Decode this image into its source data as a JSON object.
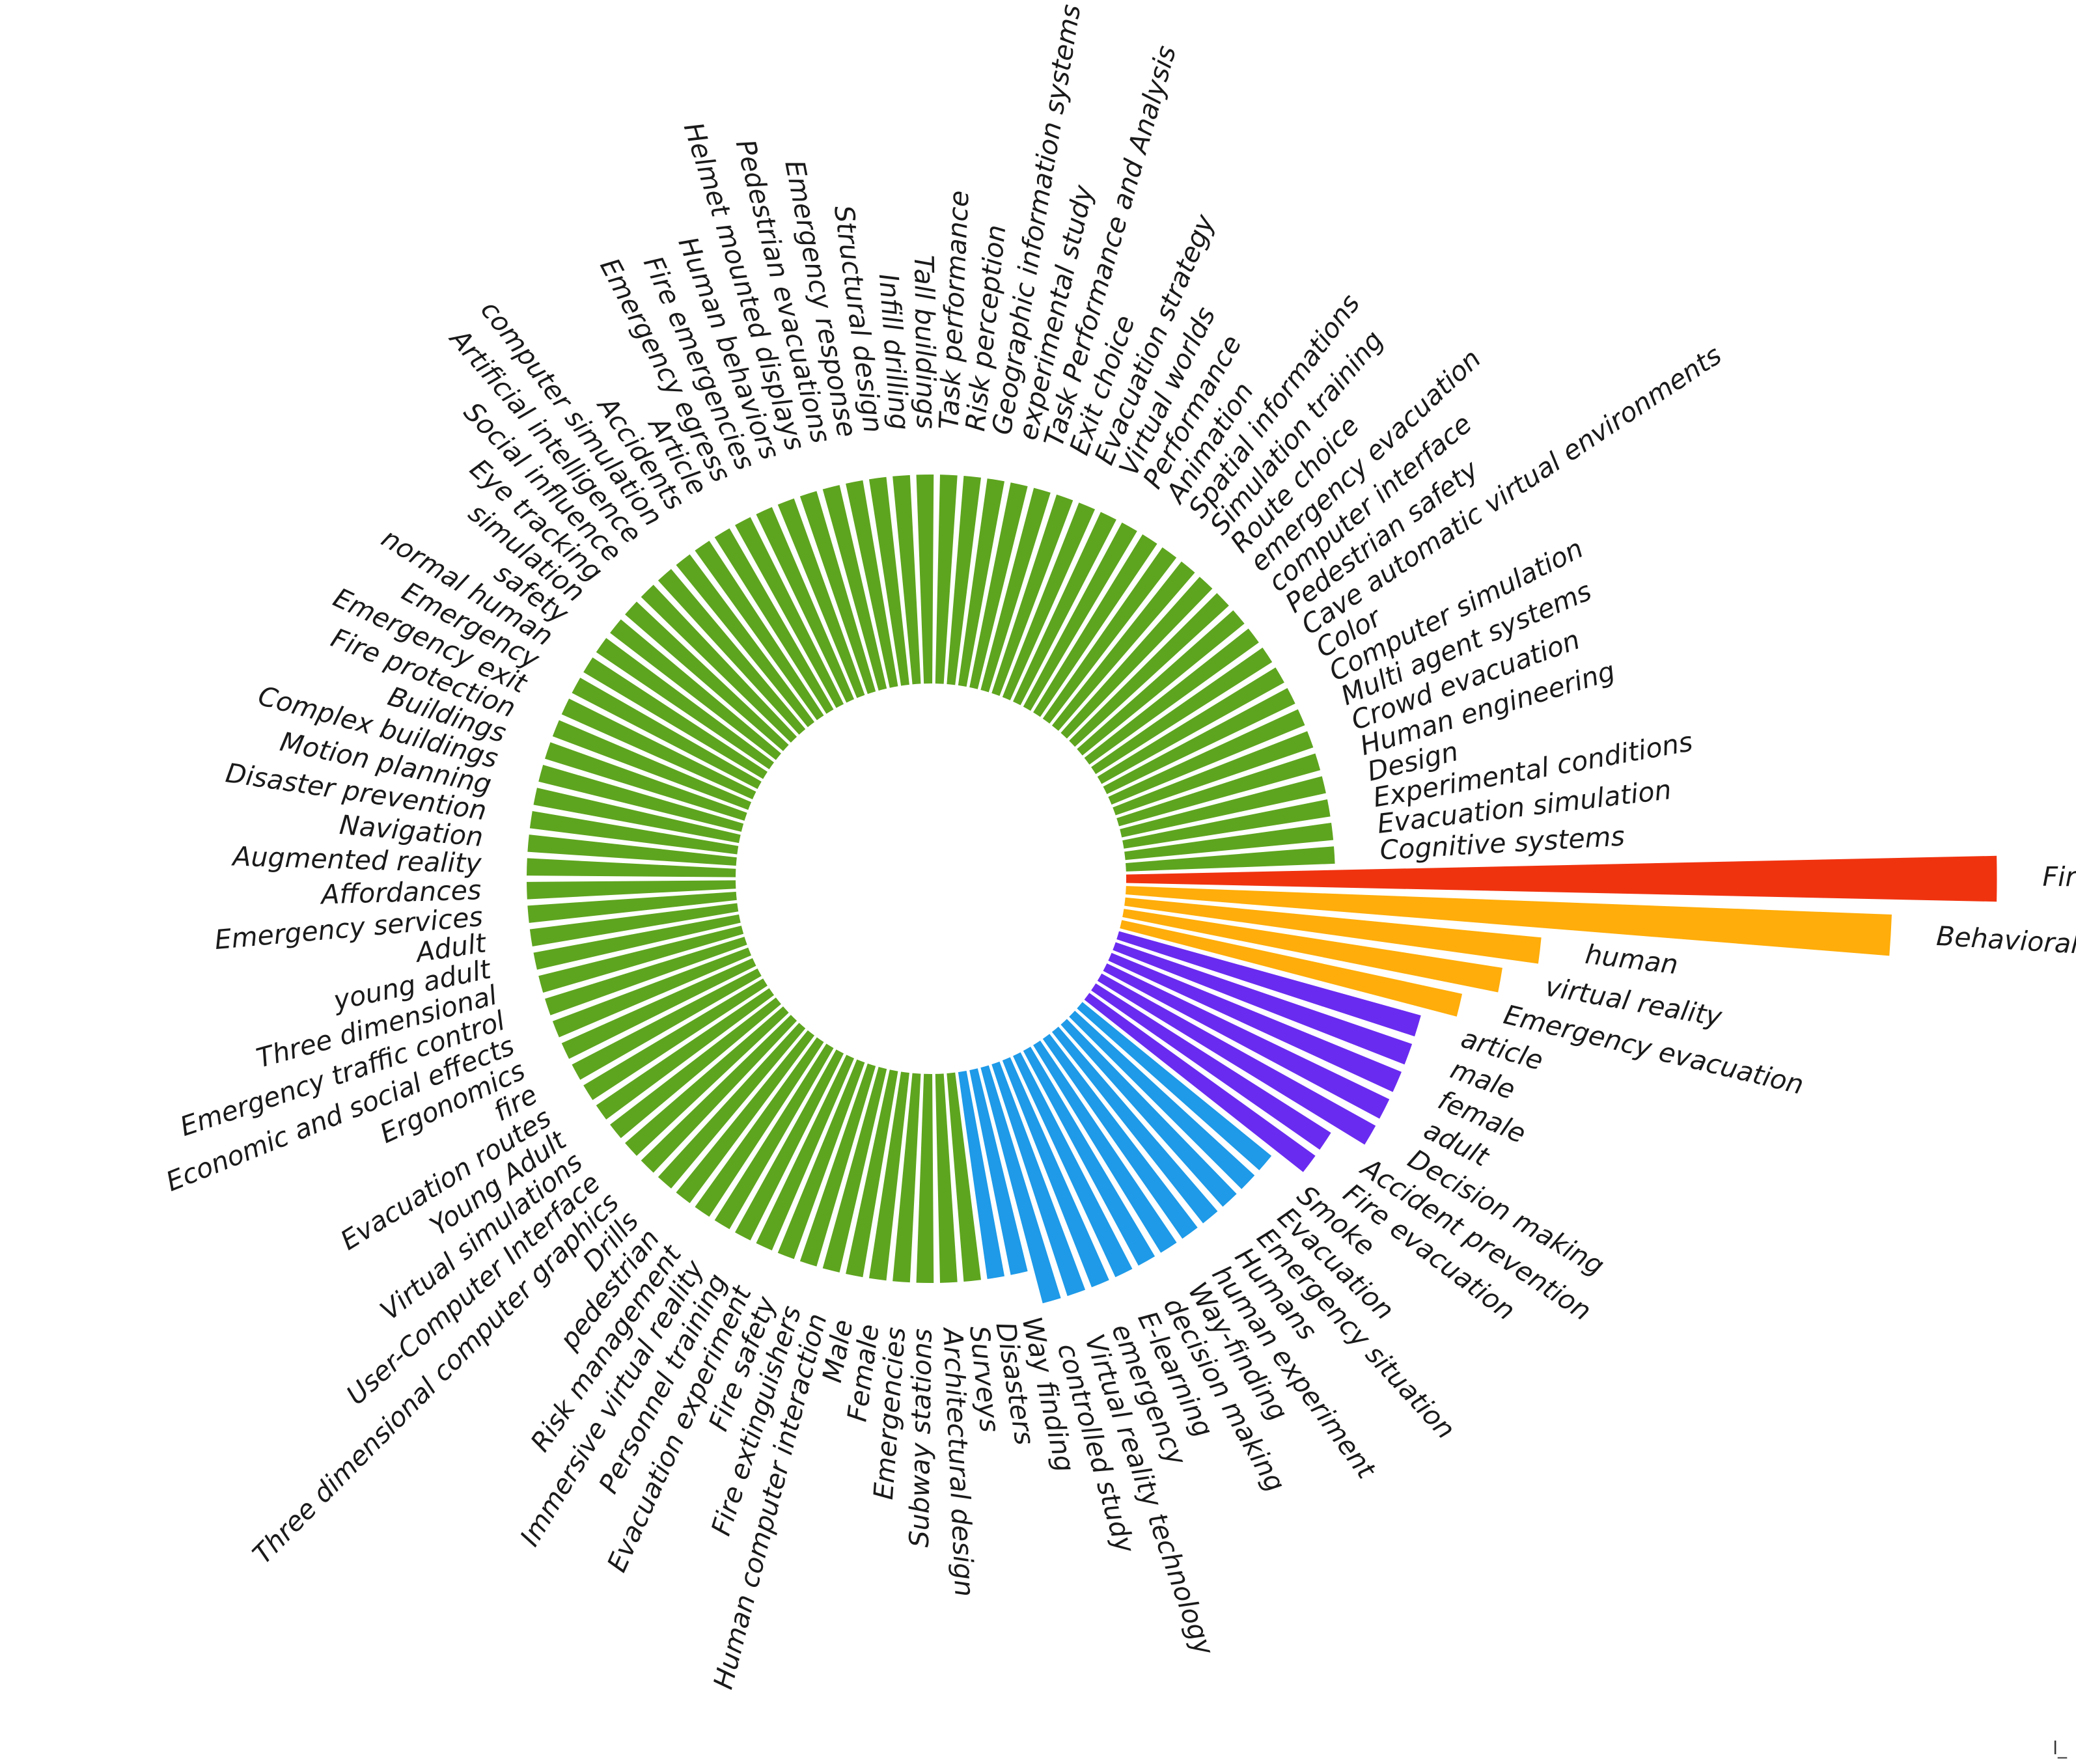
{
  "chart_data": {
    "type": "bar",
    "layout": "circular",
    "title": "",
    "grid": false,
    "legend": "none",
    "categories": [
      "Fires",
      "Behavioral research",
      "human",
      "virtual reality",
      "Emergency evacuation",
      "article",
      "male",
      "female",
      "adult",
      "Decision making",
      "Accident prevention",
      "Fire evacuation",
      "Smoke",
      "Evacuation",
      "Emergency situation",
      "Humans",
      "human experiment",
      "Way-finding",
      "decision making",
      "E-learning",
      "emergency",
      "Virtual reality technology",
      "controlled study",
      "Way finding",
      "Disasters",
      "Surveys",
      "Architectural design",
      "Subway stations",
      "Emergencies",
      "Female",
      "Male",
      "Human computer interaction",
      "Fire extinguishers",
      "Fire safety",
      "Evacuation experiment",
      "Personnel training",
      "Immersive virtual reality",
      "Risk management",
      "pedestrian",
      "Drills",
      "Three dimensional computer graphics",
      "User-Computer Interface",
      "Virtual simulations",
      "Young Adult",
      "Evacuation routes",
      "fire",
      "Ergonomics",
      "Economic and social effects",
      "Emergency traffic control",
      "Three dimensional",
      "young adult",
      "Adult",
      "Emergency services",
      "Affordances",
      "Augmented reality",
      "Navigation",
      "Disaster prevention",
      "Motion planning",
      "Complex buildings",
      "Buildings",
      "Fire protection",
      "Emergency exit",
      "Emergency",
      "normal human",
      "safety",
      "simulation",
      "Eye tracking",
      "Social influence",
      "Artificial intelligence",
      "computer simulation",
      "Accidents",
      "Article",
      "Emergency egress",
      "Fire emergencies",
      "Human behaviors",
      "Helmet mounted displays",
      "Pedestrian evacuations",
      "Emergency response",
      "Structural design",
      "Infill drilling",
      "Tall buildings",
      "Task performance",
      "Risk perception",
      "Geographic information systems",
      "experimental study",
      "Task Performance and Analysis",
      "Exit choice",
      "Evacuation strategy",
      "Virtual worlds",
      "Performance",
      "Animation",
      "Spatial informations",
      "Simulation training",
      "Route choice",
      "emergency evacuation",
      "computer interface",
      "Pedestrian safety",
      "Cave automatic virtual environments",
      "Color",
      "Computer simulation",
      "Multi agent systems",
      "Crowd evacuation",
      "Human engineering",
      "Design",
      "Experimental conditions",
      "Evacuation simulation",
      "Cognitive systems"
    ],
    "values": [
      25,
      22,
      12,
      11,
      10,
      9,
      9,
      9,
      9,
      9,
      8,
      8,
      7,
      7,
      7,
      7,
      7,
      7,
      7,
      7,
      7,
      7,
      7,
      6,
      6,
      6,
      6,
      6,
      6,
      6,
      6,
      6,
      6,
      6,
      6,
      6,
      6,
      6,
      6,
      6,
      6,
      6,
      6,
      6,
      6,
      6,
      6,
      6,
      6,
      6,
      6,
      6,
      6,
      6,
      6,
      6,
      6,
      6,
      6,
      6,
      6,
      6,
      6,
      6,
      6,
      6,
      6,
      6,
      6,
      6,
      6,
      6,
      6,
      6,
      6,
      6,
      6,
      6,
      6,
      6,
      6,
      6,
      6,
      6,
      6,
      6,
      6,
      6,
      6,
      6,
      6,
      6,
      6,
      6,
      6,
      6,
      6,
      6,
      6,
      6,
      6,
      6,
      6,
      6,
      6,
      6,
      6
    ],
    "color_groups": [
      {
        "count": 1,
        "color": "#f0330f"
      },
      {
        "count": 4,
        "color": "#ffad0a"
      },
      {
        "count": 7,
        "color": "#6a2bf0"
      },
      {
        "count": 13,
        "color": "#1e9ae8"
      },
      {
        "count": 82,
        "color": "#5ea51f"
      }
    ]
  }
}
